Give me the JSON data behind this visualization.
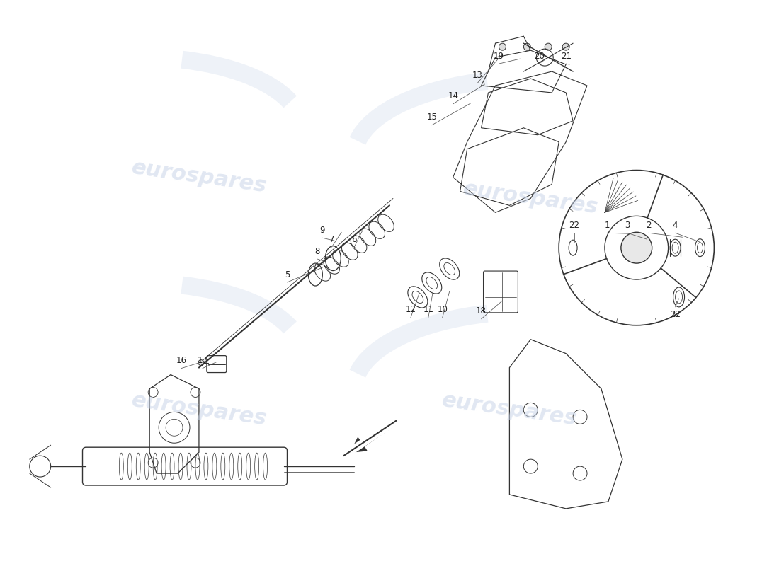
{
  "background_color": "#ffffff",
  "watermark_text": "eurospares",
  "watermark_color": "#c8d4e8",
  "line_color": "#333333",
  "label_color": "#222222",
  "labels_data": [
    [
      1,
      8.58,
      4.82,
      8.9,
      4.7
    ],
    [
      2,
      9.17,
      4.82,
      9.65,
      4.65
    ],
    [
      3,
      8.87,
      4.82,
      9.15,
      4.62
    ],
    [
      4,
      9.55,
      4.82,
      9.9,
      4.58
    ],
    [
      5,
      4.05,
      4.12,
      4.55,
      4.22
    ],
    [
      6,
      5.0,
      4.62,
      5.12,
      4.75
    ],
    [
      7,
      4.68,
      4.62,
      4.82,
      4.72
    ],
    [
      8,
      4.48,
      4.45,
      4.6,
      4.3
    ],
    [
      9,
      4.55,
      4.75,
      4.72,
      4.6
    ],
    [
      10,
      6.25,
      3.62,
      6.35,
      3.88
    ],
    [
      11,
      6.05,
      3.62,
      6.12,
      3.9
    ],
    [
      12,
      5.8,
      3.62,
      5.92,
      3.85
    ],
    [
      13,
      6.75,
      6.95,
      7.1,
      7.25
    ],
    [
      14,
      6.4,
      6.65,
      6.85,
      6.82
    ],
    [
      15,
      6.1,
      6.35,
      6.65,
      6.55
    ],
    [
      16,
      2.55,
      2.9,
      2.84,
      2.88
    ],
    [
      17,
      2.85,
      2.9,
      3.05,
      2.88
    ],
    [
      18,
      6.8,
      3.6,
      7.1,
      3.75
    ],
    [
      19,
      7.05,
      7.22,
      7.35,
      7.18
    ],
    [
      20,
      7.62,
      7.22,
      7.72,
      7.18
    ],
    [
      21,
      8.0,
      7.22,
      8.05,
      7.1
    ]
  ],
  "label_22_a": [
    8.12,
    4.82,
    8.12,
    4.58
  ],
  "label_22_b": [
    9.55,
    3.55,
    9.6,
    3.78
  ]
}
